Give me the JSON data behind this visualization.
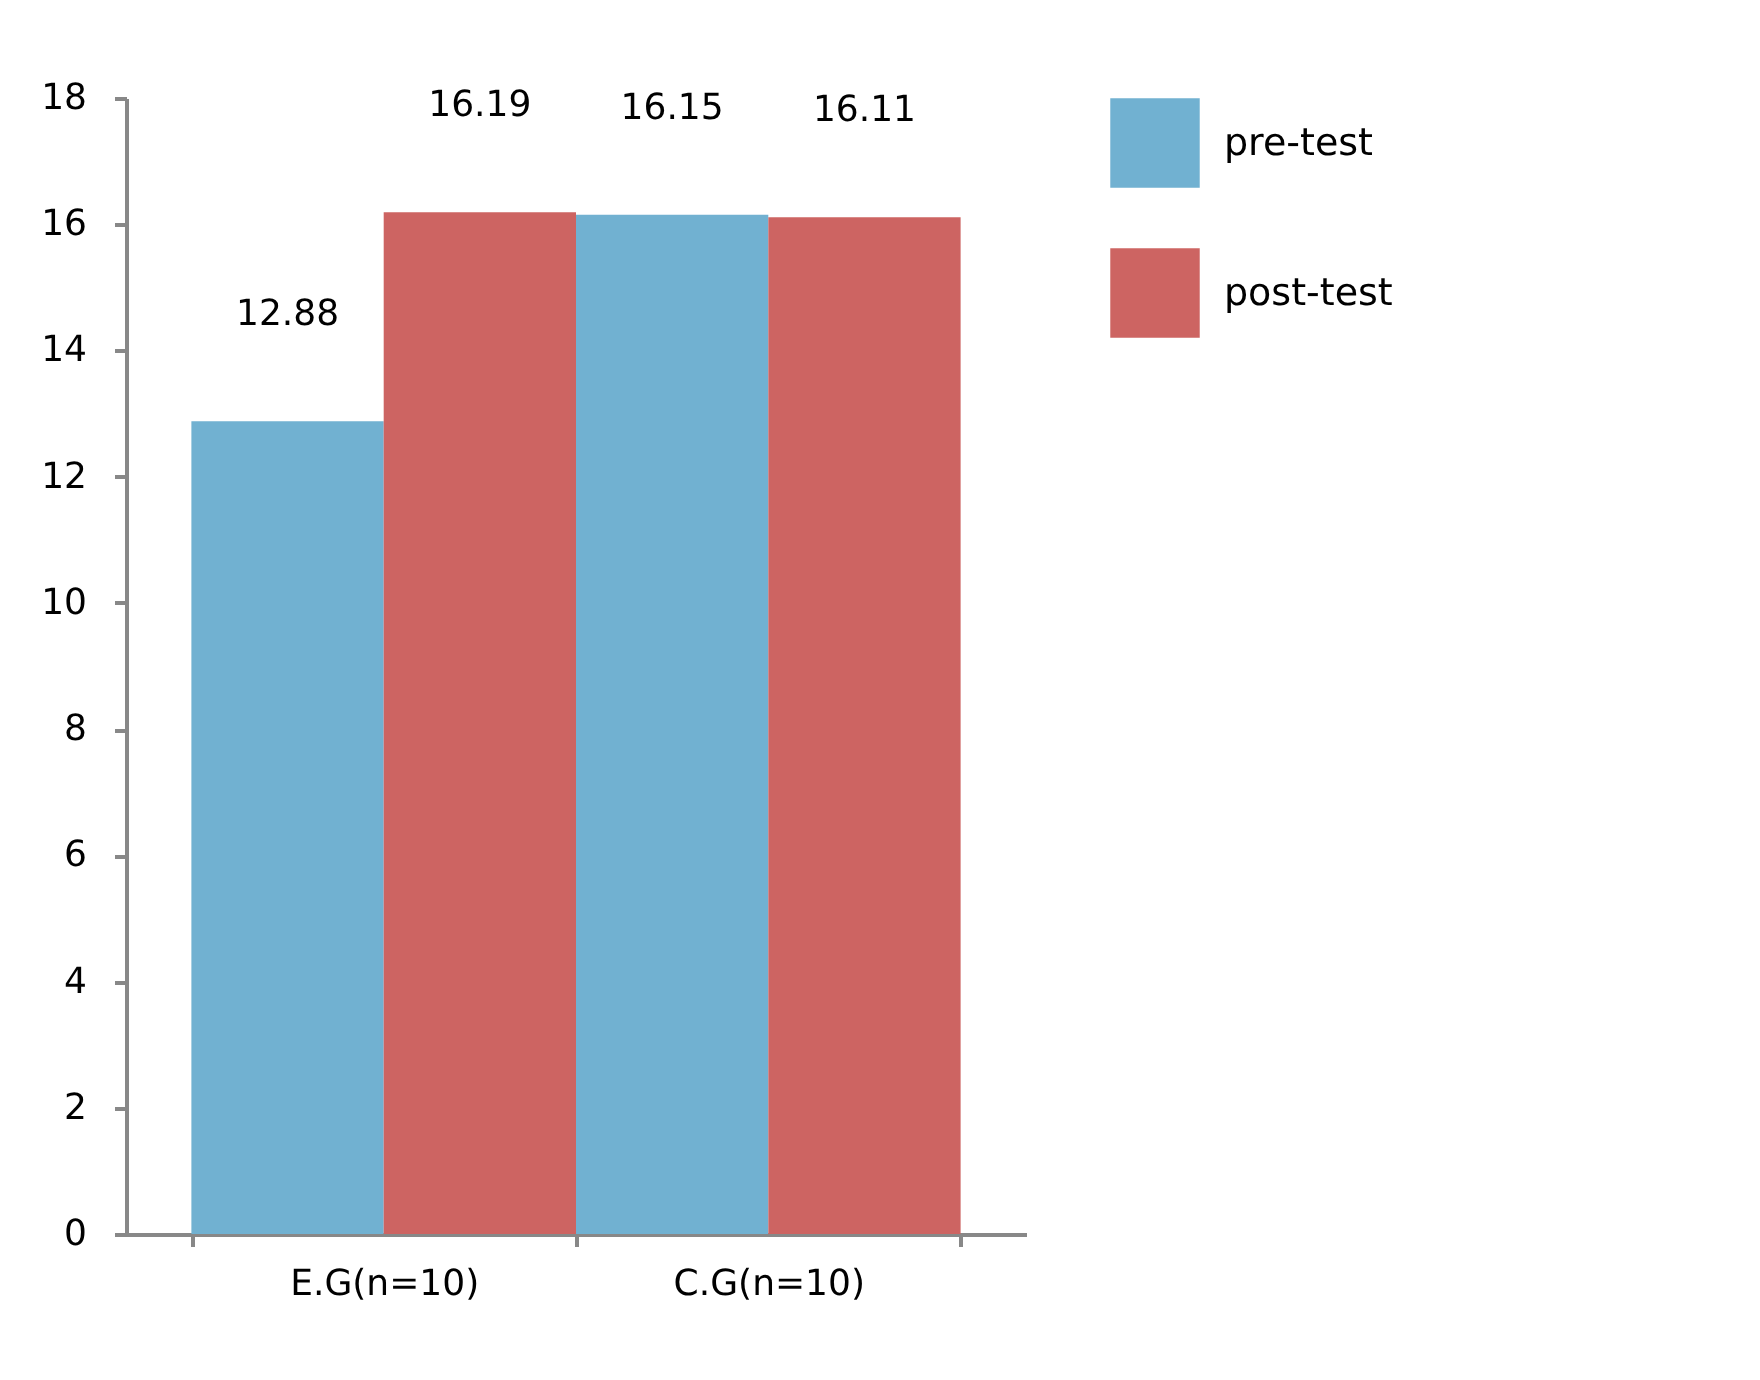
{
  "chart_data": {
    "type": "bar",
    "categories": [
      "E.G(n=10)",
      "C.G(n=10)"
    ],
    "series": [
      {
        "name": "pre-test",
        "color": "#71b1d1",
        "values": [
          12.88,
          16.15
        ]
      },
      {
        "name": "post-test",
        "color": "#cd6462",
        "values": [
          16.19,
          16.11
        ]
      }
    ],
    "ylim": [
      0,
      18
    ],
    "yticks": [
      0,
      2,
      4,
      6,
      8,
      10,
      12,
      14,
      16,
      18
    ],
    "grid": false,
    "legend": "right",
    "data_labels": true
  }
}
